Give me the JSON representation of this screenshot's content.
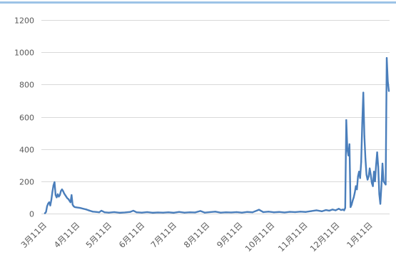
{
  "colors": {
    "series_line": "#4a7ebb",
    "gridline": "#d9d9d9",
    "tick_label": "#595959",
    "top_border": "#9dc3e6",
    "background": "#ffffff"
  },
  "chart_data": {
    "type": "line",
    "x_tick_labels": [
      "3月11日",
      "4月11日",
      "5月11日",
      "6月11日",
      "7月11日",
      "8月11日",
      "9月11日",
      "10月11日",
      "11月11日",
      "12月11日",
      "1月11日"
    ],
    "y_tick_labels": [
      "0",
      "200",
      "400",
      "600",
      "800",
      "1000",
      "1200"
    ],
    "ylim": [
      0,
      1200
    ],
    "xlim": [
      "3月11日",
      "1月28日"
    ],
    "grid": "horizontal",
    "legend": "none",
    "x": [
      "3月11日",
      "3月12日",
      "3月13日",
      "3月14日",
      "3月15日",
      "3月16日",
      "3月17日",
      "3月18日",
      "3月19日",
      "3月20日",
      "3月21日",
      "3月22日",
      "3月23日",
      "3月24日",
      "3月25日",
      "3月26日",
      "3月27日",
      "3月28日",
      "3月29日",
      "3月30日",
      "3月31日",
      "4月1日",
      "4月2日",
      "4月3日",
      "4月4日",
      "4月5日",
      "4月6日",
      "4月7日",
      "4月8日",
      "4月10日",
      "4月13日",
      "4月16日",
      "4月19日",
      "4月22日",
      "4月25日",
      "4月28日",
      "5月1日",
      "5月3日",
      "5月6日",
      "5月10日",
      "5月15日",
      "5月20日",
      "5月25日",
      "5月30日",
      "6月2日",
      "6月5日",
      "6月10日",
      "6月15日",
      "6月20日",
      "6月25日",
      "6月30日",
      "7月5日",
      "7月10日",
      "7月15日",
      "7月20日",
      "7月25日",
      "7月30日",
      "8月4日",
      "8月8日",
      "8月13日",
      "8月18日",
      "8月23日",
      "8月28日",
      "9月2日",
      "9月7日",
      "9月12日",
      "9月17日",
      "9月22日",
      "9月28日",
      "10月2日",
      "10月7日",
      "10月12日",
      "10月17日",
      "10月22日",
      "10月27日",
      "11月1日",
      "11月6日",
      "11月11日",
      "11月16日",
      "11月21日",
      "11月26日",
      "11月30日",
      "12月3日",
      "12月6日",
      "12月9日",
      "12月12日",
      "12月14日",
      "12月16日",
      "12月17日",
      "12月18日",
      "12月19日",
      "12月20日",
      "12月21日",
      "12月22日",
      "12月23日",
      "12月24日",
      "12月25日",
      "12月26日",
      "12月27日",
      "12月28日",
      "12月29日",
      "12月30日",
      "12月31日",
      "1月1日",
      "1月2日",
      "1月3日",
      "1月4日",
      "1月5日",
      "1月6日",
      "1月7日",
      "1月8日",
      "1月9日",
      "1月10日",
      "1月11日",
      "1月12日",
      "1月13日",
      "1月14日",
      "1月15日",
      "1月16日",
      "1月17日",
      "1月18日",
      "1月19日",
      "1月20日",
      "1月21日",
      "1月22日",
      "1月23日",
      "1月24日",
      "1月25日",
      "1月26日",
      "1月27日",
      "1月28日"
    ],
    "series": [
      {
        "values": [
          2,
          10,
          45,
          62,
          70,
          50,
          85,
          135,
          175,
          195,
          115,
          100,
          120,
          105,
          115,
          140,
          150,
          140,
          125,
          115,
          105,
          95,
          90,
          80,
          70,
          115,
          55,
          45,
          40,
          38,
          35,
          30,
          25,
          18,
          12,
          10,
          8,
          18,
          8,
          6,
          9,
          5,
          7,
          10,
          18,
          8,
          6,
          9,
          5,
          7,
          6,
          8,
          5,
          10,
          6,
          8,
          7,
          16,
          6,
          9,
          12,
          6,
          8,
          7,
          9,
          6,
          10,
          8,
          24,
          9,
          12,
          8,
          10,
          7,
          11,
          9,
          12,
          10,
          15,
          20,
          14,
          22,
          18,
          25,
          20,
          30,
          22,
          25,
          20,
          35,
          580,
          400,
          360,
          430,
          40,
          55,
          80,
          100,
          130,
          170,
          150,
          230,
          260,
          220,
          320,
          560,
          750,
          480,
          340,
          240,
          210,
          230,
          280,
          240,
          190,
          170,
          260,
          200,
          300,
          380,
          290,
          120,
          60,
          170,
          310,
          200,
          190,
          180,
          965,
          820,
          760
        ]
      }
    ]
  }
}
